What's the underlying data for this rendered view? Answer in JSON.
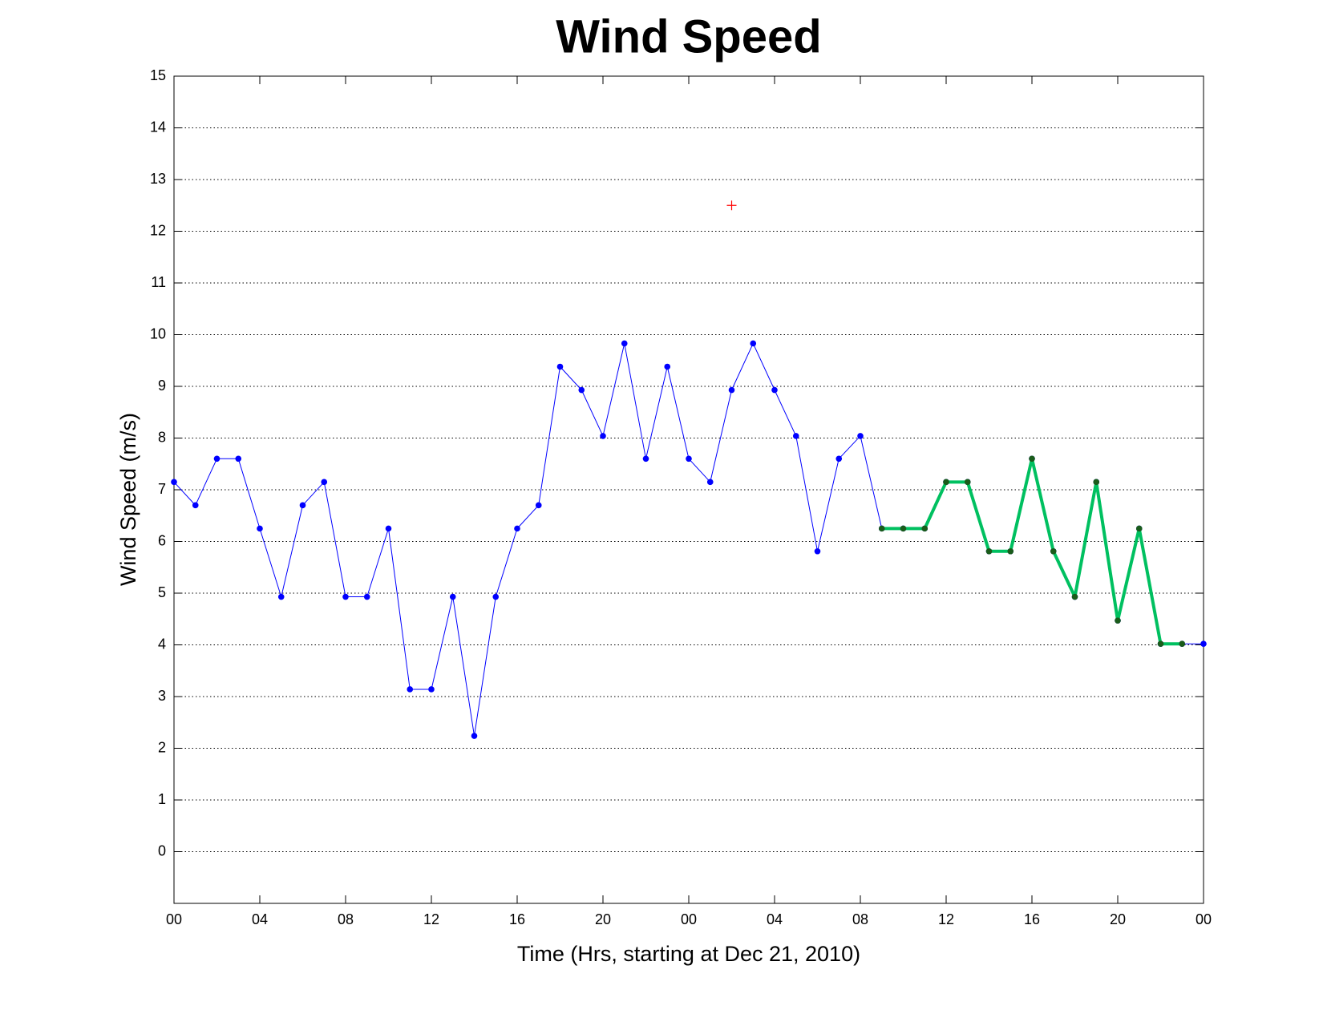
{
  "chart_data": {
    "type": "line",
    "title": "Wind Speed",
    "xlabel": "Time (Hrs, starting at Dec 21, 2010)",
    "ylabel": "Wind Speed (m/s)",
    "xlim": [
      0,
      48
    ],
    "xticks": [
      {
        "value": 0,
        "label": "00"
      },
      {
        "value": 4,
        "label": "04"
      },
      {
        "value": 8,
        "label": "08"
      },
      12,
      16,
      20,
      {
        "value": 24,
        "label": "00"
      },
      {
        "value": 28,
        "label": "04"
      },
      {
        "value": 32,
        "label": "08"
      },
      {
        "value": 36,
        "label": "12"
      },
      {
        "value": 40,
        "label": "16"
      },
      {
        "value": 44,
        "label": "20"
      },
      {
        "value": 48,
        "label": "00"
      }
    ],
    "ylim": [
      -1,
      15
    ],
    "yticks": [
      0,
      1,
      2,
      3,
      4,
      5,
      6,
      7,
      8,
      9,
      10,
      11,
      12,
      13,
      14,
      15
    ],
    "ygrid": true,
    "series": [
      {
        "color": "#0000ff",
        "marker_color": "#0000ff",
        "marker": "dot",
        "line_width": 1,
        "x": [
          0,
          1,
          2,
          3,
          4,
          5,
          6,
          7,
          8,
          9,
          10,
          11,
          12,
          13,
          14,
          15,
          16,
          17,
          18,
          19,
          20,
          21,
          22,
          23,
          24,
          25,
          26,
          27,
          28,
          29,
          30,
          31,
          32,
          33,
          34,
          35,
          36,
          37,
          38,
          39,
          40,
          41,
          42,
          43,
          44,
          45,
          46,
          47,
          48
        ],
        "values": [
          7.15,
          6.7,
          7.6,
          7.6,
          6.25,
          4.93,
          6.7,
          7.15,
          4.93,
          4.93,
          6.25,
          3.14,
          3.14,
          4.93,
          2.24,
          4.93,
          6.25,
          6.7,
          9.38,
          8.93,
          8.04,
          9.83,
          7.6,
          9.38,
          7.6,
          7.15,
          8.93,
          9.83,
          8.93,
          8.04,
          5.81,
          7.6,
          8.04,
          6.25,
          6.25,
          6.25,
          7.15,
          7.15,
          5.81,
          5.81,
          7.6,
          5.81,
          4.93,
          7.15,
          4.47,
          6.25,
          4.02,
          4.02,
          4.02
        ]
      },
      {
        "color": "#00c060",
        "marker_color": "#1a5c1a",
        "marker": "dot",
        "line_width": 4,
        "x": [
          33,
          34,
          35,
          36,
          37,
          38,
          39,
          40,
          41,
          42,
          43,
          44,
          45,
          46,
          47
        ],
        "values": [
          6.25,
          6.25,
          6.25,
          7.15,
          7.15,
          5.81,
          5.81,
          7.6,
          5.81,
          4.93,
          7.15,
          4.47,
          6.25,
          4.02,
          4.02
        ]
      },
      {
        "color": "#ff0000",
        "marker_color": "#ff0000",
        "marker": "plus",
        "line_width": 0,
        "x": [
          26
        ],
        "values": [
          12.5
        ]
      }
    ]
  }
}
